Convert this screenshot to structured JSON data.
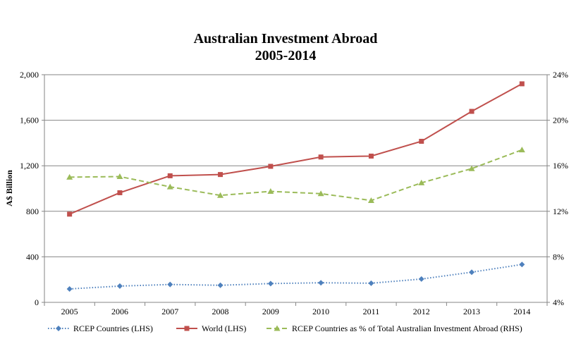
{
  "chart_data": {
    "type": "line",
    "title": [
      "Australian Investment Abroad",
      "2005-2014"
    ],
    "ylabel": "A$ Billion",
    "y2label": "",
    "categories": [
      "2005",
      "2006",
      "2007",
      "2008",
      "2009",
      "2010",
      "2011",
      "2012",
      "2013",
      "2014"
    ],
    "ylim": [
      0,
      2000
    ],
    "y2lim": [
      4,
      24
    ],
    "yticks": [
      "0",
      "400",
      "800",
      "1,200",
      "1,600",
      "2,000"
    ],
    "y2ticks": [
      "4%",
      "8%",
      "12%",
      "16%",
      "20%",
      "24%"
    ],
    "grid": true,
    "legend": "bottom",
    "series": [
      {
        "name": "RCEP Countries (LHS)",
        "axis": "left",
        "color": "#4F81BD",
        "style": "dotted",
        "marker": "diamond",
        "values": [
          118,
          143,
          157,
          150,
          165,
          172,
          168,
          205,
          265,
          333
        ]
      },
      {
        "name": "World (LHS)",
        "axis": "left",
        "color": "#C0504D",
        "style": "solid",
        "marker": "square",
        "values": [
          775,
          963,
          1112,
          1123,
          1195,
          1277,
          1285,
          1415,
          1678,
          1920
        ]
      },
      {
        "name": "RCEP Countries as % of Total Australian Investment Abroad (RHS)",
        "axis": "right",
        "color": "#9BBB59",
        "style": "dashed",
        "marker": "triangle",
        "values": [
          15.0,
          15.05,
          14.15,
          13.4,
          13.75,
          13.55,
          12.95,
          14.5,
          15.75,
          17.4
        ]
      }
    ]
  }
}
